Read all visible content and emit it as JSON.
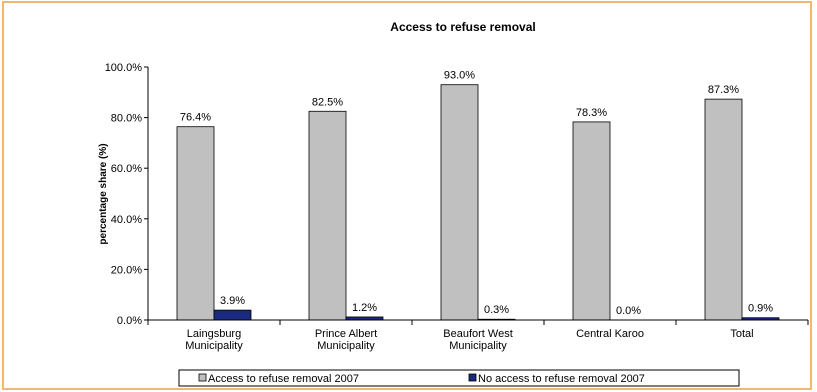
{
  "chart_data": {
    "type": "bar",
    "title": "Access to refuse removal",
    "ylabel": "percentage share (%)",
    "xlabel": "",
    "ylim": [
      0,
      100
    ],
    "yticks": [
      "0.0%",
      "20.0%",
      "40.0%",
      "60.0%",
      "80.0%",
      "100.0%"
    ],
    "categories": [
      [
        "Laingsburg",
        "Municipality"
      ],
      [
        "Prince Albert",
        "Municipality"
      ],
      [
        "Beaufort West",
        "Municipality"
      ],
      [
        "Central Karoo"
      ],
      [
        "Total"
      ]
    ],
    "series": [
      {
        "name": "Access to refuse removal 2007",
        "values": [
          76.4,
          82.5,
          93.0,
          78.3,
          87.3
        ],
        "labels": [
          "76.4%",
          "82.5%",
          "93.0%",
          "78.3%",
          "87.3%"
        ],
        "color": "#c0c0c0"
      },
      {
        "name": "No access to refuse removal 2007",
        "values": [
          3.9,
          1.2,
          0.3,
          0.0,
          0.9
        ],
        "labels": [
          "3.9%",
          "1.2%",
          "0.3%",
          "0.0%",
          "0.9%"
        ],
        "color": "#1a2a80"
      }
    ],
    "grid": false,
    "legend_position": "bottom"
  },
  "colors": {
    "frame_border": "#f2b870",
    "axis": "#000000"
  }
}
